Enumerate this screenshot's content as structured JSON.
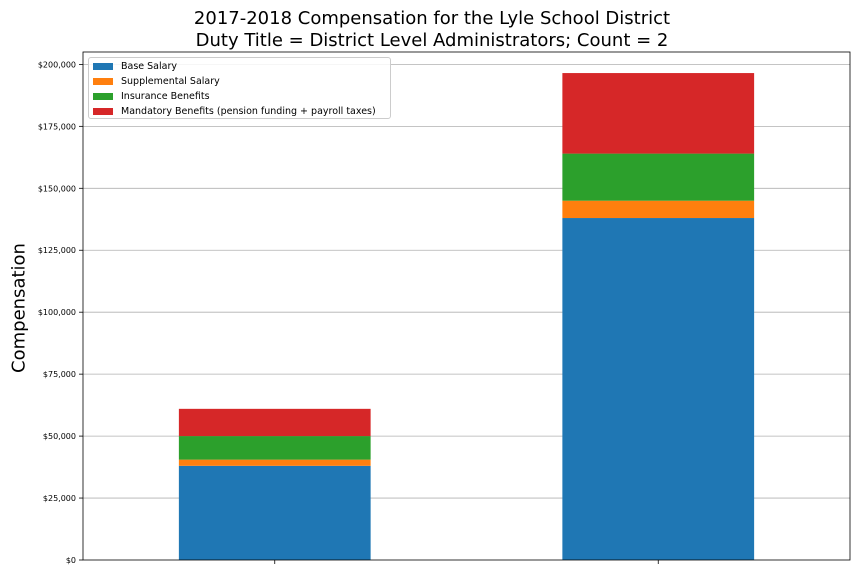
{
  "chart_data": {
    "type": "bar",
    "stacked": true,
    "title_line1": "2017-2018 Compensation for the Lyle School District",
    "title_line2": "Duty Title = District Level Administrators; Count = 2",
    "xlabel": "",
    "ylabel": "Compensation",
    "ylim": [
      0,
      205000
    ],
    "yticks": [
      0,
      25000,
      50000,
      75000,
      100000,
      125000,
      150000,
      175000,
      200000
    ],
    "ytick_labels": [
      "$0",
      "$25,000",
      "$50,000",
      "$75,000",
      "$100,000",
      "$125,000",
      "$150,000",
      "$175,000",
      "$200,000"
    ],
    "categories": [
      "",
      ""
    ],
    "grid": "horizontal",
    "legend_position": "top-left",
    "series": [
      {
        "name": "Base Salary",
        "color": "#1f77b4",
        "values": [
          38000,
          138000
        ]
      },
      {
        "name": "Supplemental Salary",
        "color": "#ff7f0e",
        "values": [
          2500,
          7000
        ]
      },
      {
        "name": "Insurance Benefits",
        "color": "#2ca02c",
        "values": [
          9500,
          19000
        ]
      },
      {
        "name": "Mandatory Benefits (pension funding + payroll taxes)",
        "color": "#d62728",
        "values": [
          11000,
          32500
        ]
      }
    ]
  }
}
